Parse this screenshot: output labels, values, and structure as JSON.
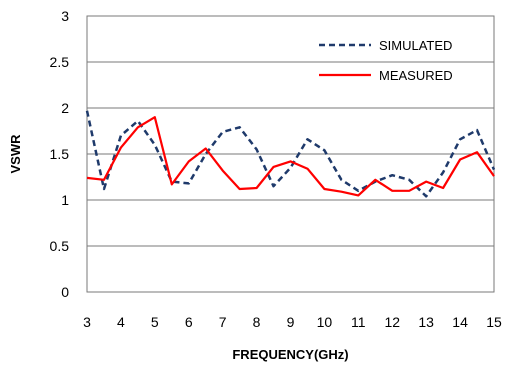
{
  "chart_data": {
    "type": "line",
    "title": "",
    "xlabel": "FREQUENCY(GHz)",
    "ylabel": "VSWR",
    "xlim": [
      3,
      15
    ],
    "ylim": [
      0,
      3
    ],
    "xticks": [
      3,
      4,
      5,
      6,
      7,
      8,
      9,
      10,
      11,
      12,
      13,
      14,
      15
    ],
    "yticks": [
      0,
      0.5,
      1,
      1.5,
      2,
      2.5,
      3
    ],
    "ytick_labels": [
      "0",
      "0.5",
      "1",
      "1.5",
      "2",
      "2.5",
      "3"
    ],
    "grid": "horizontal",
    "legend_position": "top-right",
    "series": [
      {
        "name": "SIMULATED",
        "color": "#1f3a6b",
        "style": "dashed",
        "x": [
          3,
          3.5,
          4,
          4.5,
          5,
          5.5,
          6,
          6.5,
          7,
          7.5,
          8,
          8.5,
          9,
          9.5,
          10,
          10.5,
          11,
          11.5,
          12,
          12.5,
          13,
          13.5,
          14,
          14.5,
          15
        ],
        "y": [
          1.97,
          1.12,
          1.7,
          1.86,
          1.6,
          1.2,
          1.18,
          1.5,
          1.74,
          1.79,
          1.55,
          1.15,
          1.35,
          1.66,
          1.54,
          1.22,
          1.1,
          1.2,
          1.27,
          1.22,
          1.04,
          1.3,
          1.66,
          1.76,
          1.33
        ]
      },
      {
        "name": "MEASURED",
        "color": "#ff0000",
        "style": "solid",
        "x": [
          3,
          3.5,
          4,
          4.5,
          5,
          5.5,
          6,
          6.5,
          7,
          7.5,
          8,
          8.5,
          9,
          9.5,
          10,
          10.5,
          11,
          11.5,
          12,
          12.5,
          13,
          13.5,
          14,
          14.5,
          15
        ],
        "y": [
          1.24,
          1.22,
          1.57,
          1.79,
          1.9,
          1.17,
          1.42,
          1.56,
          1.32,
          1.12,
          1.13,
          1.36,
          1.42,
          1.34,
          1.12,
          1.09,
          1.05,
          1.22,
          1.1,
          1.1,
          1.2,
          1.13,
          1.44,
          1.52,
          1.26
        ]
      }
    ]
  }
}
